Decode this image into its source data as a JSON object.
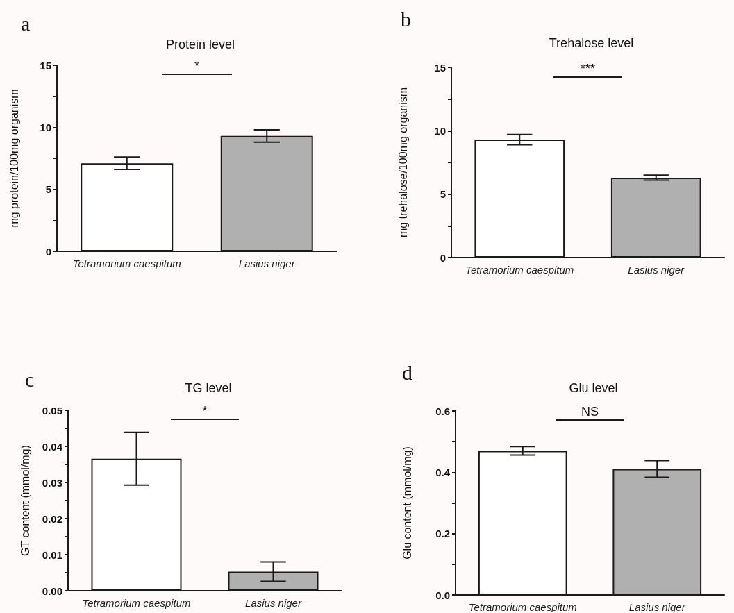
{
  "chart_data": [
    {
      "type": "bar",
      "title": "Protein level",
      "ylabel": "mg protein/100mg organism",
      "categories": [
        "Tetramorium caespitum",
        "Lasius niger"
      ],
      "values": [
        7.1,
        9.3
      ],
      "errors": [
        0.5,
        0.5
      ],
      "colors": [
        "#ffffff",
        "#b0b0b0"
      ],
      "ylim": [
        0,
        15
      ],
      "yticks": [
        0,
        {
          "value": 2.5,
          "label": null
        },
        5,
        {
          "value": 7.5,
          "label": null
        },
        10,
        {
          "value": 12.5,
          "label": null
        },
        15
      ],
      "grid": false,
      "annotations": [
        "a",
        "*"
      ]
    },
    {
      "type": "bar",
      "title": "Trehalose level",
      "ylabel": "mg trehalose/100mg organism",
      "categories": [
        "Tetramorium caespitum",
        "Lasius niger"
      ],
      "values": [
        9.3,
        6.3
      ],
      "errors": [
        0.4,
        0.2
      ],
      "colors": [
        "#ffffff",
        "#b0b0b0"
      ],
      "ylim": [
        0,
        15
      ],
      "yticks": [
        0,
        {
          "value": 2.5,
          "label": null
        },
        5,
        {
          "value": 7.5,
          "label": null
        },
        10,
        {
          "value": 12.5,
          "label": null
        },
        15
      ],
      "grid": false,
      "annotations": [
        "b",
        "***"
      ]
    },
    {
      "type": "bar",
      "title": "TG level",
      "ylabel": "GT content (mmol/mg)",
      "categories": [
        "Tetramorium caespitum",
        "Lasius niger"
      ],
      "values": [
        0.0366,
        0.0053
      ],
      "errors": [
        0.0073,
        0.0027
      ],
      "colors": [
        "#ffffff",
        "#b0b0b0"
      ],
      "ylim": [
        0,
        0.05
      ],
      "yticks": [
        {
          "value": 0,
          "label": "0.00"
        },
        {
          "value": 0.005,
          "label": null
        },
        {
          "value": 0.01,
          "label": "0.01"
        },
        {
          "value": 0.015,
          "label": null
        },
        {
          "value": 0.02,
          "label": "0.02"
        },
        {
          "value": 0.025,
          "label": null
        },
        {
          "value": 0.03,
          "label": "0.03"
        },
        {
          "value": 0.035,
          "label": null
        },
        {
          "value": 0.04,
          "label": "0.04"
        },
        {
          "value": 0.045,
          "label": null
        },
        {
          "value": 0.05,
          "label": "0.05"
        }
      ],
      "grid": false,
      "annotations": [
        "c",
        "*"
      ]
    },
    {
      "type": "bar",
      "title": "Glu level",
      "ylabel": "Glu content (mmol/mg)",
      "categories": [
        "Tetramorium caespitum",
        "Lasius niger"
      ],
      "values": [
        0.47,
        0.411
      ],
      "errors": [
        0.014,
        0.027
      ],
      "colors": [
        "#ffffff",
        "#b0b0b0"
      ],
      "ylim": [
        0,
        0.6
      ],
      "yticks": [
        {
          "value": 0,
          "label": "0.0"
        },
        {
          "value": 0.1,
          "label": null
        },
        {
          "value": 0.2,
          "label": "0.2"
        },
        {
          "value": 0.3,
          "label": null
        },
        {
          "value": 0.4,
          "label": "0.4"
        },
        {
          "value": 0.5,
          "label": null
        },
        {
          "value": 0.6,
          "label": "0.6"
        }
      ],
      "grid": false,
      "annotations": [
        "d",
        "NS"
      ]
    }
  ]
}
